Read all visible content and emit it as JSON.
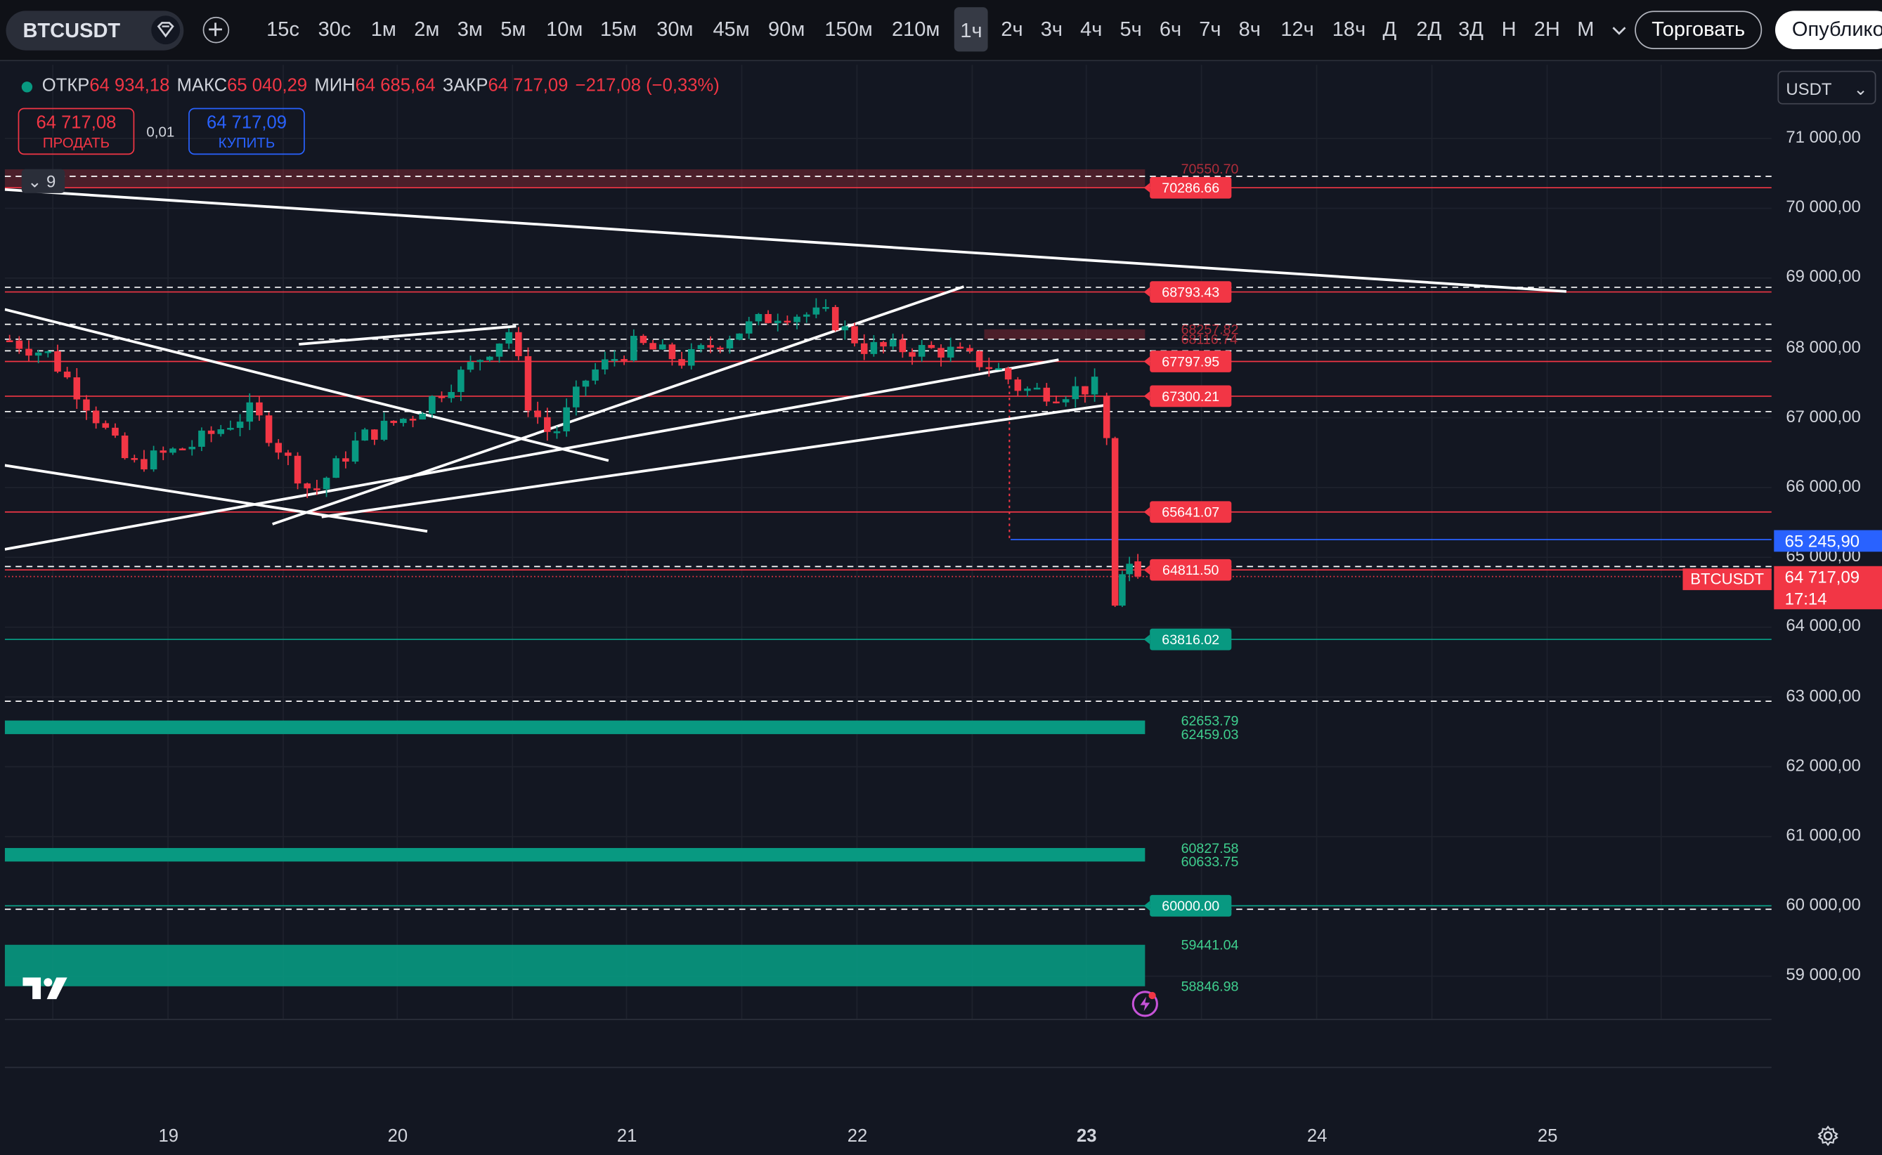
{
  "toolbar": {
    "symbol": "BTCUSDT",
    "timeframes": [
      "15с",
      "30с",
      "1м",
      "2м",
      "3м",
      "5м",
      "10м",
      "15м",
      "30м",
      "45м",
      "90м",
      "150м",
      "210м",
      "1ч",
      "2ч",
      "3ч",
      "4ч",
      "5ч",
      "6ч",
      "7ч",
      "8ч",
      "12ч",
      "18ч",
      "Д",
      "2Д",
      "3Д",
      "Н",
      "2Н",
      "М"
    ],
    "active_timeframe": "1ч",
    "more_icon": "chevron-down-icon",
    "trade_label": "Торговать",
    "publish_label": "Опублико"
  },
  "legend": {
    "open_label": "ОТКР",
    "open": "64 934,18",
    "high_label": "МАКС",
    "high": "65 040,29",
    "low_label": "МИН",
    "low": "64 685,64",
    "close_label": "ЗАКР",
    "close": "64 717,09",
    "change": "−217,08 (−0,33%)"
  },
  "order_panel": {
    "sell_price": "64 717,08",
    "sell_label": "ПРОДАТЬ",
    "spread": "0,01",
    "buy_price": "64 717,09",
    "buy_label": "КУПИТЬ"
  },
  "drawings_toggle": {
    "count": "9"
  },
  "currency_select": "USDT",
  "price_axis": [
    "71 000,00",
    "70 000,00",
    "69 000,00",
    "68 000,00",
    "67 000,00",
    "66 000,00",
    "65 000,00",
    "64 000,00",
    "63 000,00",
    "62 000,00",
    "61 000,00",
    "60 000,00",
    "59 000,00"
  ],
  "time_axis": [
    "19",
    "20",
    "21",
    "22",
    "23",
    "24",
    "25"
  ],
  "current_price": {
    "value": "64 717,09",
    "countdown": "17:14",
    "symbol": "BTCUSDT"
  },
  "blue_level": "65 245,90",
  "level_labels": [
    {
      "text": "70550.70",
      "kind": "faint-red"
    },
    {
      "text": "70286.66",
      "kind": "red"
    },
    {
      "text": "68793.43",
      "kind": "red"
    },
    {
      "text": "68257.82",
      "kind": "faint-red"
    },
    {
      "text": "68116.74",
      "kind": "faint-red"
    },
    {
      "text": "67797.95",
      "kind": "red"
    },
    {
      "text": "67300.21",
      "kind": "red"
    },
    {
      "text": "65641.07",
      "kind": "red"
    },
    {
      "text": "64811.50",
      "kind": "red"
    },
    {
      "text": "63816.02",
      "kind": "green"
    },
    {
      "text": "62653.79",
      "kind": "green-text"
    },
    {
      "text": "62459.03",
      "kind": "green-text"
    },
    {
      "text": "60827.58",
      "kind": "green-text"
    },
    {
      "text": "60633.75",
      "kind": "green-text"
    },
    {
      "text": "60000.00",
      "kind": "green"
    },
    {
      "text": "59441.04",
      "kind": "green-text"
    },
    {
      "text": "58846.98",
      "kind": "green-text"
    }
  ],
  "colors": {
    "up": "#089981",
    "down": "#f23645",
    "accent": "#2962ff",
    "background": "#131722"
  }
}
